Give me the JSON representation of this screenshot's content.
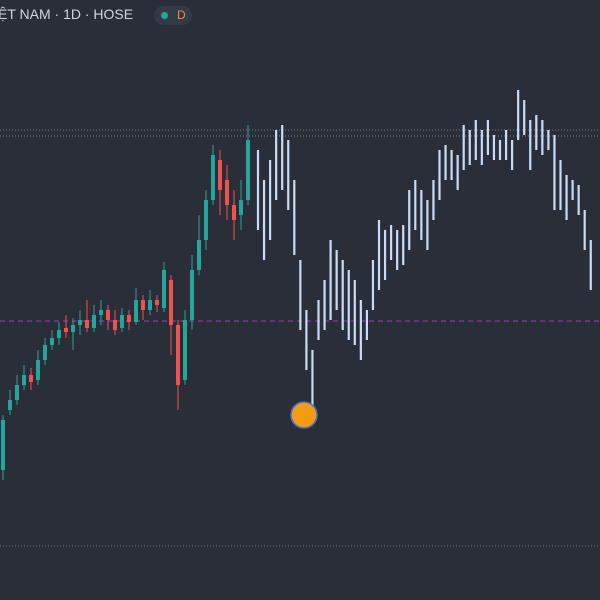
{
  "header": {
    "title": "ỆT NAM · 1D · HOSE",
    "badge": "D"
  },
  "chart_data": {
    "type": "candlestick",
    "ylim": [
      0,
      600
    ],
    "up_color": "#26a69a",
    "down_color": "#ef5350",
    "candles": {
      "open": [
        130,
        190,
        200,
        215,
        225,
        220,
        240,
        255,
        262,
        272,
        268,
        275,
        280,
        272,
        285,
        290,
        280,
        272,
        285,
        278,
        300,
        290,
        300,
        292,
        320,
        275,
        220,
        280,
        330,
        360,
        400,
        440,
        420,
        395,
        385,
        400
      ],
      "high": [
        185,
        210,
        225,
        235,
        232,
        250,
        262,
        270,
        278,
        285,
        282,
        290,
        300,
        295,
        300,
        295,
        290,
        292,
        290,
        312,
        305,
        310,
        305,
        338,
        325,
        280,
        290,
        345,
        385,
        410,
        455,
        450,
        435,
        410,
        420,
        475
      ],
      "low": [
        120,
        185,
        195,
        210,
        210,
        215,
        235,
        250,
        255,
        262,
        250,
        265,
        268,
        268,
        275,
        270,
        265,
        268,
        270,
        275,
        280,
        285,
        288,
        288,
        245,
        190,
        215,
        270,
        325,
        350,
        395,
        385,
        380,
        360,
        370,
        395
      ],
      "close": [
        180,
        200,
        215,
        225,
        218,
        240,
        255,
        262,
        270,
        268,
        275,
        280,
        272,
        285,
        290,
        280,
        270,
        285,
        278,
        300,
        290,
        300,
        295,
        330,
        275,
        215,
        280,
        330,
        360,
        400,
        445,
        410,
        395,
        380,
        400,
        460
      ]
    },
    "bars": {
      "color": "#c9dcf5",
      "high": [
        450,
        420,
        440,
        470,
        475,
        460,
        420,
        340,
        290,
        250,
        300,
        320,
        360,
        350,
        340,
        330,
        320,
        300,
        290,
        340,
        380,
        370,
        375,
        370,
        375,
        410,
        420,
        410,
        400,
        420,
        450,
        455,
        450,
        445,
        475,
        470,
        480,
        470,
        480,
        465,
        460,
        470,
        460,
        510,
        500,
        480,
        485,
        480,
        470,
        465,
        440,
        425,
        420,
        415,
        390,
        360
      ],
      "low": [
        370,
        340,
        360,
        400,
        410,
        390,
        345,
        270,
        230,
        190,
        260,
        270,
        280,
        290,
        270,
        260,
        255,
        240,
        260,
        290,
        310,
        320,
        340,
        330,
        335,
        350,
        370,
        360,
        350,
        380,
        400,
        420,
        420,
        410,
        430,
        435,
        440,
        435,
        445,
        440,
        440,
        440,
        430,
        460,
        465,
        430,
        450,
        445,
        450,
        390,
        390,
        380,
        400,
        385,
        350,
        310
      ]
    },
    "levels": [
      {
        "value": 470,
        "color": "#7c8290",
        "style": "dotted"
      },
      {
        "value": 464,
        "color": "#7c8290",
        "style": "dotted"
      },
      {
        "value": 279,
        "color": "#9c3fb0",
        "style": "dashed"
      },
      {
        "value": 54,
        "color": "#6a6f7c",
        "style": "dotted"
      }
    ]
  }
}
